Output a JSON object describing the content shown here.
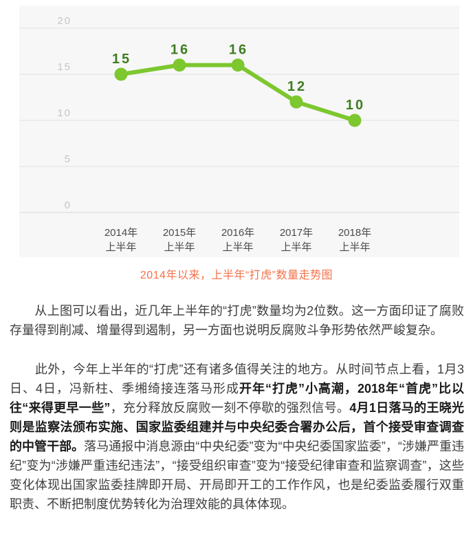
{
  "chart_data": {
    "type": "line",
    "categories": [
      "2014年",
      "2015年",
      "2016年",
      "2017年",
      "2018年"
    ],
    "category_line2": "上半年",
    "values": [
      15,
      16,
      16,
      12,
      10
    ],
    "title": "2014年以来，上半年“打虎”数量走势图",
    "xlabel": "",
    "ylabel": "",
    "ylim": [
      0,
      20
    ],
    "yticks": [
      0,
      5,
      10,
      15,
      20
    ],
    "grid": true,
    "legend": false
  },
  "chart_style": {
    "background": "#f7f7f8",
    "line_color": "#7dc72f",
    "point_color": "#7dc72f",
    "point_label_color": "#3f7d20",
    "gridline_color": "#e1e1e3",
    "baseline_color": "#d7d7d9",
    "tick_label_color": "#c5c5c7",
    "x_label_color": "#4b4b4b",
    "caption_color": "#f5714a"
  },
  "caption": {
    "text": "2014年以来，上半年“打虎”数量走势图"
  },
  "article": {
    "paragraphs": [
      {
        "runs": [
          {
            "bold": false,
            "text": "　　从上图可以看出，近几年上半年的“打虎”数量均为2位数。这一方面印证了腐败存量得到削减、增量得到遏制，另一方面也说明反腐败斗争形势依然严峻复杂。"
          }
        ]
      },
      {
        "runs": [
          {
            "bold": false,
            "text": "　　此外，今年上半年的“打虎”还有诸多值得关注的地方。从时间节点上看，1月3日、4日，冯新柱、季缃绮接连落马形成"
          },
          {
            "bold": true,
            "text": "开年“打虎”小高潮，2018年“首虎”比以往“来得更早一些”"
          },
          {
            "bold": false,
            "text": "，充分释放反腐败一刻不停歇的强烈信号。"
          },
          {
            "bold": true,
            "text": "4月1日落马的王晓光则是监察法颁布实施、国家监委组建并与中央纪委合署办公后，首个接受审查调查的中管干部。"
          },
          {
            "bold": false,
            "text": "落马通报中消息源由“中央纪委”变为“中央纪委国家监委”，“涉嫌严重违纪”变为“涉嫌严重违纪违法”，“接受组织审查”变为“接受纪律审查和监察调查”，这些变化体现出国家监委挂牌即开局、开局即开工的工作作风，也是纪委监委履行双重职责、不断把制度优势转化为治理效能的具体体现。"
          }
        ]
      }
    ]
  }
}
